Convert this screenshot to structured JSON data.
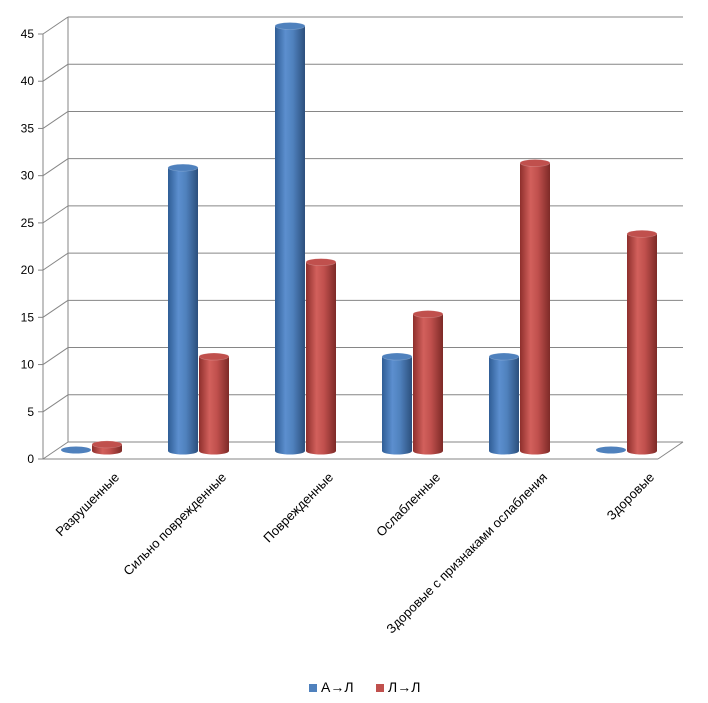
{
  "chart_data": {
    "type": "bar",
    "style": "3d-cylinder",
    "categories": [
      "Разрушенные",
      "Сильно поврежденные",
      "Поврежденные",
      "Ослабленные",
      "Здоровые с признаками ослабления",
      "Здоровые"
    ],
    "series": [
      {
        "name": "А→Л",
        "color": "#4f81bd",
        "values": [
          0,
          30,
          45,
          10,
          10,
          0
        ]
      },
      {
        "name": "Л→Л",
        "color": "#c0504d",
        "values": [
          0.7,
          10,
          20,
          14.5,
          30.5,
          23
        ]
      }
    ],
    "yticks": [
      "0",
      "5",
      "10",
      "15",
      "20",
      "25",
      "30",
      "35",
      "40",
      "45"
    ],
    "ylim": [
      0,
      45
    ],
    "grid": true,
    "legend": "bottom"
  }
}
